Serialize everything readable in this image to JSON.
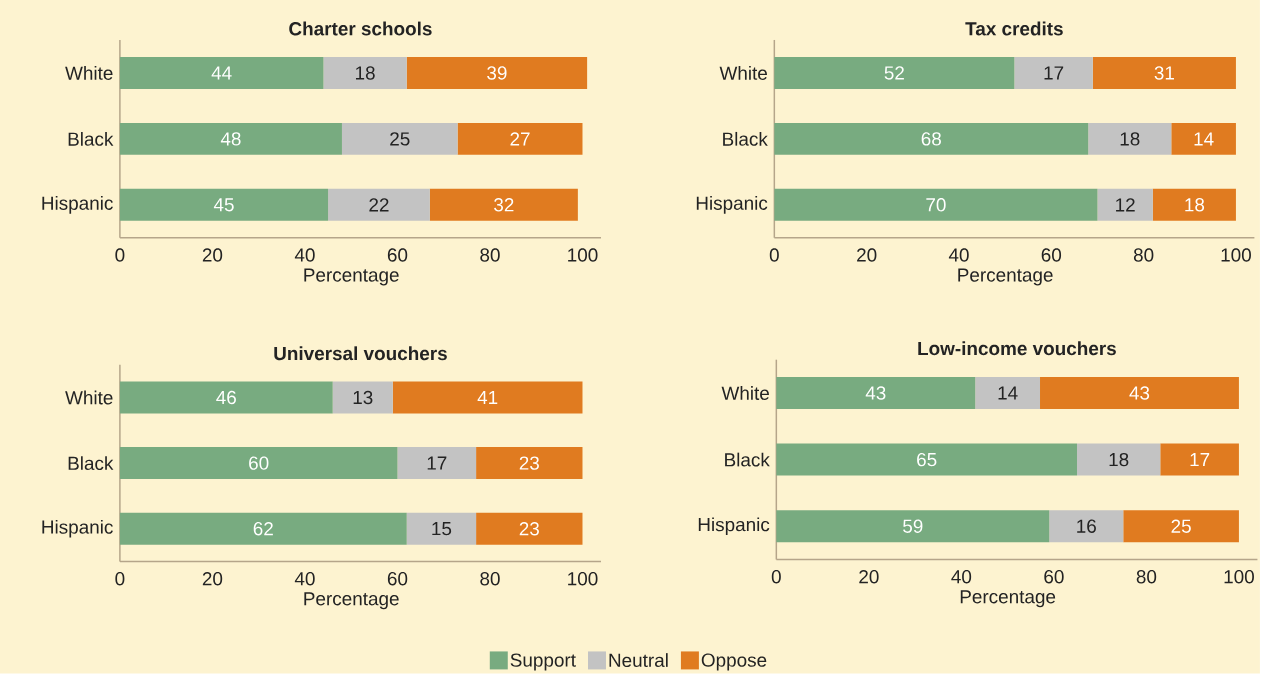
{
  "chart_data": [
    {
      "type": "bar",
      "orientation": "horizontal",
      "stacked": true,
      "data_labels": true,
      "title": "Charter schools",
      "xlabel": "Percentage",
      "categories": [
        "White",
        "Black",
        "Hispanic"
      ],
      "xlim": [
        0,
        104
      ],
      "xticks": [
        0,
        20,
        40,
        60,
        80,
        100
      ],
      "series": [
        {
          "color": "#78ab80",
          "values": [
            44,
            48,
            45
          ]
        },
        {
          "color": "#c3c3c3",
          "values": [
            18,
            25,
            22
          ]
        },
        {
          "color": "#e07b20",
          "values": [
            39,
            27,
            32
          ]
        }
      ]
    },
    {
      "type": "bar",
      "orientation": "horizontal",
      "stacked": true,
      "data_labels": true,
      "title": "Tax credits",
      "xlabel": "Percentage",
      "categories": [
        "White",
        "Black",
        "Hispanic"
      ],
      "xlim": [
        0,
        104
      ],
      "xticks": [
        0,
        20,
        40,
        60,
        80,
        100
      ],
      "series": [
        {
          "color": "#78ab80",
          "values": [
            52,
            68,
            70
          ]
        },
        {
          "color": "#c3c3c3",
          "values": [
            17,
            18,
            12
          ]
        },
        {
          "color": "#e07b20",
          "values": [
            31,
            14,
            18
          ]
        }
      ]
    },
    {
      "type": "bar",
      "orientation": "horizontal",
      "stacked": true,
      "data_labels": true,
      "title": "Universal vouchers",
      "xlabel": "Percentage",
      "categories": [
        "White",
        "Black",
        "Hispanic"
      ],
      "xlim": [
        0,
        104
      ],
      "xticks": [
        0,
        20,
        40,
        60,
        80,
        100
      ],
      "series": [
        {
          "color": "#78ab80",
          "values": [
            46,
            60,
            62
          ]
        },
        {
          "color": "#c3c3c3",
          "values": [
            13,
            17,
            15
          ]
        },
        {
          "color": "#e07b20",
          "values": [
            41,
            23,
            23
          ]
        }
      ]
    },
    {
      "type": "bar",
      "orientation": "horizontal",
      "stacked": true,
      "data_labels": true,
      "legend": "bottom",
      "title": "Low-income vouchers",
      "xlabel": "Percentage",
      "categories": [
        "White",
        "Black",
        "Hispanic"
      ],
      "xlim": [
        0,
        104
      ],
      "xticks": [
        0,
        20,
        40,
        60,
        80,
        100
      ],
      "series": [
        {
          "name": "Support",
          "color": "#78ab80",
          "values": [
            43,
            65,
            59
          ]
        },
        {
          "name": "Neutral",
          "color": "#c3c3c3",
          "values": [
            14,
            18,
            16
          ]
        },
        {
          "name": "Oppose",
          "color": "#e07b20",
          "values": [
            43,
            17,
            25
          ]
        }
      ]
    }
  ]
}
